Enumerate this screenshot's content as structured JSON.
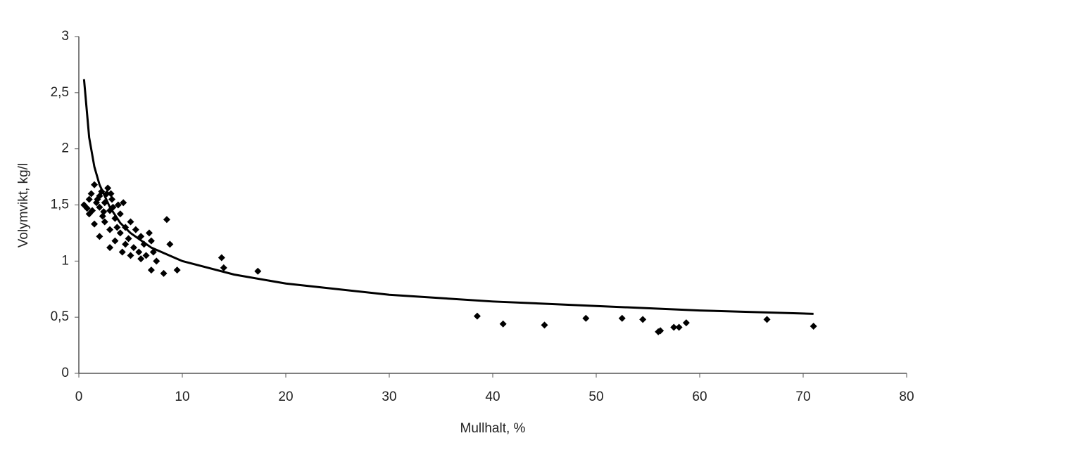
{
  "chart_data": {
    "type": "scatter",
    "x_label": "Mullhalt, %",
    "y_label": "Volymvikt, kg/l",
    "xlim": [
      0,
      80
    ],
    "xticks": [
      0,
      10,
      20,
      30,
      40,
      50,
      60,
      70,
      80
    ],
    "ylim": [
      0,
      3
    ],
    "yticks": [
      0,
      {
        "value": 0.5,
        "label": "0,5"
      },
      1,
      {
        "value": 1.5,
        "label": "1,5"
      },
      2,
      {
        "value": 2.5,
        "label": "2,5"
      },
      3
    ],
    "grid": false,
    "series": [
      {
        "type": "scatter",
        "color": "#000000",
        "x": [
          0.5,
          1,
          1.2,
          1.5,
          1.5,
          1.8,
          2,
          2,
          2.2,
          2.5,
          2.5,
          2.7,
          3,
          3,
          3,
          3.2,
          3.5,
          3.5,
          3.8,
          4,
          4,
          4.2,
          4.5,
          4.5,
          4.8,
          5,
          5,
          5.3,
          5.5,
          5.8,
          6,
          6,
          6.3,
          6.5,
          6.8,
          7,
          7.2,
          7.5,
          1,
          1.3,
          2,
          2.3,
          2.8,
          3.3,
          3.7,
          4.3,
          0.8,
          1.7,
          2.4,
          3.1,
          8.5,
          8.8,
          8.2,
          9.5,
          7,
          13.8,
          14,
          17.3,
          38.5,
          41,
          45,
          49,
          52.5,
          54.5,
          56,
          56.2,
          57.5,
          58,
          58.7,
          66.5,
          71
        ],
        "values": [
          1.5,
          1.42,
          1.6,
          1.68,
          1.33,
          1.55,
          1.22,
          1.48,
          1.62,
          1.52,
          1.35,
          1.6,
          1.45,
          1.28,
          1.12,
          1.55,
          1.38,
          1.18,
          1.5,
          1.25,
          1.42,
          1.08,
          1.3,
          1.15,
          1.2,
          1.35,
          1.05,
          1.12,
          1.28,
          1.08,
          1.22,
          1.02,
          1.15,
          1.05,
          1.25,
          1.18,
          1.08,
          1.0,
          1.55,
          1.45,
          1.58,
          1.4,
          1.65,
          1.48,
          1.3,
          1.52,
          1.47,
          1.52,
          1.44,
          1.6,
          1.37,
          1.15,
          0.89,
          0.92,
          0.92,
          1.03,
          0.94,
          0.91,
          0.51,
          0.44,
          0.43,
          0.49,
          0.49,
          0.48,
          0.37,
          0.38,
          0.41,
          0.41,
          0.45,
          0.48,
          0.42
        ]
      },
      {
        "type": "line",
        "color": "#000000",
        "x": [
          0.5,
          1,
          1.5,
          2,
          3,
          4,
          5,
          7,
          10,
          15,
          20,
          30,
          40,
          50,
          60,
          71
        ],
        "values": [
          2.62,
          2.1,
          1.84,
          1.68,
          1.48,
          1.34,
          1.25,
          1.12,
          1.0,
          0.88,
          0.8,
          0.7,
          0.64,
          0.6,
          0.56,
          0.53
        ]
      }
    ]
  }
}
